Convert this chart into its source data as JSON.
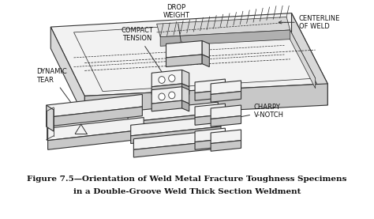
{
  "title_line1": "Figure 7.5—Orientation of Weld Metal Fracture Toughness Specimens",
  "title_line2": "in a Double-Groove Weld Thick Section Weldment",
  "figure_bg": "#ffffff",
  "labels": {
    "drop_weight": "DROP\nWEIGHT",
    "compact_tension": "COMPACT\nTENSION",
    "dynamic_tear": "DYNAMIC\nTEAR",
    "centerline_of_weld": "CENTERLINE\nOF WELD",
    "charpy_v_notch": "CHARPY\nV-NOTCH"
  },
  "line_color": "#333333",
  "text_color": "#111111",
  "title_fontsize": 7.5,
  "label_fontsize": 6.0,
  "fill_top": "#f2f2f2",
  "fill_side": "#d8d8d8",
  "fill_front": "#c8c8c8",
  "fill_dark": "#b0b0b0",
  "fill_white": "#ffffff"
}
